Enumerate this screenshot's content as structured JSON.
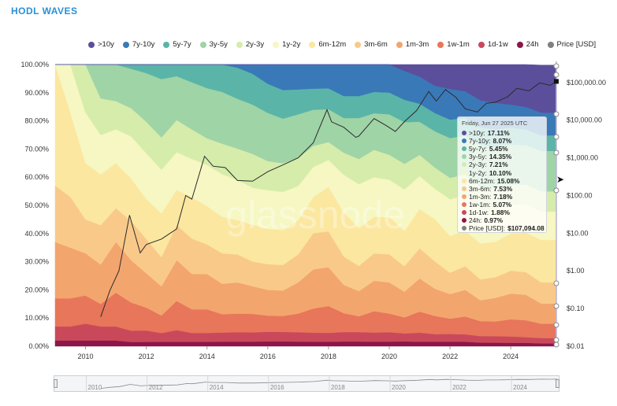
{
  "title": "HODL WAVES",
  "watermark": "glassnode",
  "legend": [
    {
      "label": ">10y",
      "color": "#5b4f9c"
    },
    {
      "label": "7y-10y",
      "color": "#3a79b8"
    },
    {
      "label": "5y-7y",
      "color": "#5ab5a8"
    },
    {
      "label": "3y-5y",
      "color": "#9fd4a6"
    },
    {
      "label": "2y-3y",
      "color": "#d6ecab"
    },
    {
      "label": "1y-2y",
      "color": "#f6f7c2"
    },
    {
      "label": "6m-12m",
      "color": "#fbe79f"
    },
    {
      "label": "3m-6m",
      "color": "#f9c98a"
    },
    {
      "label": "1m-3m",
      "color": "#f3a56e"
    },
    {
      "label": "1w-1m",
      "color": "#e7765a"
    },
    {
      "label": "1d-1w",
      "color": "#c9495b"
    },
    {
      "label": "24h",
      "color": "#8c1648"
    },
    {
      "label": "Price [USD]",
      "color": "#808080"
    }
  ],
  "tooltip": {
    "date": "Friday, Jun 27 2025 UTC",
    "rows": [
      {
        "label": ">10y:",
        "value": "17.11%",
        "color": "#5b4f9c"
      },
      {
        "label": "7y-10y:",
        "value": "8.07%",
        "color": "#3a79b8"
      },
      {
        "label": "5y-7y:",
        "value": "5.45%",
        "color": "#5ab5a8"
      },
      {
        "label": "3y-5y:",
        "value": "14.35%",
        "color": "#9fd4a6"
      },
      {
        "label": "2y-3y:",
        "value": "7.21%",
        "color": "#d6ecab"
      },
      {
        "label": "1y-2y:",
        "value": "10.10%",
        "color": "#f6f7c2"
      },
      {
        "label": "6m-12m:",
        "value": "15.08%",
        "color": "#fbe79f"
      },
      {
        "label": "3m-6m:",
        "value": "7.53%",
        "color": "#f9c98a"
      },
      {
        "label": "1m-3m:",
        "value": "7.18%",
        "color": "#f3a56e"
      },
      {
        "label": "1w-1m:",
        "value": "5.07%",
        "color": "#e7765a"
      },
      {
        "label": "1d-1w:",
        "value": "1.88%",
        "color": "#c9495b"
      },
      {
        "label": "24h:",
        "value": "0.97%",
        "color": "#8c1648"
      },
      {
        "label": "Price [USD]:",
        "value": "$107,094.08",
        "color": "#808080"
      }
    ]
  },
  "navigator": {
    "years": [
      "2010",
      "2012",
      "2014",
      "2016",
      "2018",
      "2020",
      "2022",
      "2024"
    ]
  },
  "chart_data": {
    "type": "area",
    "stacked": true,
    "y_axis_left": {
      "ticks": [
        "0.00%",
        "10.00%",
        "20.00%",
        "30.00%",
        "40.00%",
        "50.00%",
        "60.00%",
        "70.00%",
        "80.00%",
        "90.00%",
        "100.00%"
      ],
      "ylim": [
        0,
        100
      ]
    },
    "y_axis_right": {
      "scale": "log",
      "ticks": [
        "$0.01",
        "$0.10",
        "$1.00",
        "$10.00",
        "$100.00",
        "$1,000.00",
        "$10,000.00",
        "$100,000.00"
      ],
      "ylim": [
        0.01,
        300000
      ]
    },
    "x_axis": {
      "ticks": [
        "2010",
        "2012",
        "2014",
        "2016",
        "2018",
        "2020",
        "2022",
        "2024"
      ],
      "xlim": [
        2009.0,
        2025.5
      ]
    },
    "x": [
      2009.0,
      2009.5,
      2010.0,
      2010.5,
      2011.0,
      2011.5,
      2012.0,
      2012.5,
      2013.0,
      2013.5,
      2014.0,
      2014.5,
      2015.0,
      2015.5,
      2016.0,
      2016.5,
      2017.0,
      2017.5,
      2018.0,
      2018.5,
      2019.0,
      2019.5,
      2020.0,
      2020.5,
      2021.0,
      2021.5,
      2022.0,
      2022.5,
      2023.0,
      2023.5,
      2024.0,
      2024.5,
      2025.0,
      2025.5
    ],
    "series": [
      {
        "name": "24h",
        "values": [
          2,
          2,
          2,
          2,
          2,
          1.5,
          1.5,
          1.5,
          1.5,
          1.5,
          1.5,
          1.5,
          1.5,
          1.5,
          1.5,
          1.5,
          1.5,
          1.5,
          1.5,
          1.5,
          1.5,
          1.5,
          1.5,
          1.5,
          1.5,
          1.5,
          1.5,
          1.5,
          1.2,
          1.2,
          1.2,
          1.2,
          1,
          1
        ]
      },
      {
        "name": "1d-1w",
        "values": [
          5,
          5,
          6,
          5,
          5,
          4,
          4,
          3,
          4,
          3,
          3,
          3,
          3,
          3,
          3,
          3,
          3,
          3,
          3,
          3,
          3,
          3,
          3,
          2.5,
          3,
          2.5,
          2.5,
          2.5,
          2.2,
          2.2,
          2.2,
          2,
          1.9,
          1.9
        ]
      },
      {
        "name": "1w-1m",
        "values": [
          10,
          10,
          10,
          8,
          12,
          10,
          8,
          6,
          10,
          8,
          8,
          6,
          6,
          6,
          5,
          5,
          6,
          8,
          9,
          6,
          5,
          7,
          6,
          5,
          7,
          6,
          5,
          6,
          5,
          5,
          6,
          6,
          5.1,
          5.1
        ]
      },
      {
        "name": "1m-3m",
        "values": [
          20,
          18,
          15,
          14,
          18,
          15,
          12,
          10,
          14,
          12,
          12,
          10,
          10,
          9,
          8,
          8,
          10,
          13,
          13,
          9,
          8,
          10,
          10,
          8,
          11,
          9,
          8,
          9,
          7,
          8,
          9,
          9,
          7.2,
          7.2
        ]
      },
      {
        "name": "3m-6m",
        "values": [
          20,
          18,
          12,
          14,
          12,
          14,
          12,
          10,
          12,
          12,
          10,
          10,
          9,
          8,
          8,
          8,
          9,
          12,
          12,
          9,
          8,
          9,
          9,
          8,
          10,
          9,
          7,
          8,
          7,
          7,
          8,
          8,
          7.5,
          7.5
        ]
      },
      {
        "name": "6m-12m",
        "values": [
          43,
          30,
          20,
          18,
          16,
          15,
          14,
          15,
          12,
          14,
          13,
          12,
          11,
          12,
          11,
          11,
          11,
          12,
          15,
          14,
          12,
          12,
          12,
          11,
          13,
          14,
          12,
          12,
          12,
          12,
          13,
          14,
          15.1,
          15.1
        ]
      },
      {
        "name": "1y-2y",
        "values": [
          0,
          17,
          18,
          14,
          12,
          15,
          16,
          15,
          13,
          13,
          14,
          14,
          13,
          12,
          12,
          12,
          11,
          10,
          9,
          12,
          14,
          13,
          12,
          13,
          11,
          10,
          12,
          12,
          11,
          11,
          10,
          10,
          10.1,
          10.1
        ]
      },
      {
        "name": "2y-3y",
        "values": [
          0,
          0,
          17,
          13,
          10,
          10,
          11,
          11,
          11,
          10,
          9,
          10,
          10,
          11,
          9,
          9,
          9,
          7,
          6,
          7,
          8,
          9,
          8,
          8,
          7,
          7,
          7,
          7,
          8,
          7,
          7,
          7,
          7.2,
          7.2
        ]
      },
      {
        "name": "3y-5y",
        "values": [
          0,
          0,
          0,
          12,
          13,
          14,
          17,
          20,
          15,
          16,
          17,
          17,
          16,
          16,
          15,
          14,
          14,
          12,
          11,
          11,
          13,
          12,
          13,
          13,
          11,
          12,
          13,
          13,
          14,
          14,
          14,
          14,
          14.4,
          14.4
        ]
      },
      {
        "name": "5y-7y",
        "values": [
          0,
          0,
          0,
          0,
          0,
          1.5,
          3,
          5,
          4,
          6,
          8,
          9,
          10,
          10,
          9,
          9,
          8,
          7,
          7,
          7,
          7,
          7,
          7,
          7,
          6,
          6,
          6,
          6,
          6,
          6,
          6,
          5.5,
          5.5,
          5.5
        ]
      },
      {
        "name": "7y-10y",
        "values": [
          0,
          0,
          0,
          0,
          0,
          0,
          0,
          0,
          0,
          0,
          0,
          0,
          1,
          3,
          6,
          8,
          8,
          8,
          8,
          10,
          10,
          9,
          9,
          9,
          9,
          9,
          10,
          9,
          9,
          9,
          8,
          8,
          8.1,
          8.1
        ]
      },
      {
        "name": ">10y",
        "values": [
          0,
          0,
          0,
          0,
          0,
          0,
          0,
          0,
          0,
          0,
          0,
          0,
          0,
          0,
          0,
          0,
          0,
          0,
          0,
          0,
          0,
          0,
          0,
          2,
          4,
          7,
          8,
          9,
          12,
          13,
          14,
          15,
          17.1,
          17.1
        ]
      },
      {
        "name": "Price [USD]",
        "axis": "right",
        "points": [
          [
            2010.5,
            0.06
          ],
          [
            2010.8,
            0.3
          ],
          [
            2011.1,
            1
          ],
          [
            2011.45,
            30
          ],
          [
            2011.8,
            3
          ],
          [
            2012.0,
            5
          ],
          [
            2012.5,
            7
          ],
          [
            2013.0,
            13
          ],
          [
            2013.3,
            100
          ],
          [
            2013.5,
            80
          ],
          [
            2013.92,
            1100
          ],
          [
            2014.2,
            600
          ],
          [
            2014.6,
            550
          ],
          [
            2015.0,
            250
          ],
          [
            2015.5,
            240
          ],
          [
            2016.0,
            430
          ],
          [
            2016.5,
            650
          ],
          [
            2017.0,
            1000
          ],
          [
            2017.5,
            2500
          ],
          [
            2017.95,
            19000
          ],
          [
            2018.1,
            9000
          ],
          [
            2018.5,
            6500
          ],
          [
            2018.9,
            3500
          ],
          [
            2019.0,
            3800
          ],
          [
            2019.5,
            11000
          ],
          [
            2019.9,
            7200
          ],
          [
            2020.2,
            5000
          ],
          [
            2020.5,
            9200
          ],
          [
            2020.9,
            18000
          ],
          [
            2021.3,
            58000
          ],
          [
            2021.55,
            32000
          ],
          [
            2021.85,
            65000
          ],
          [
            2022.2,
            40000
          ],
          [
            2022.5,
            20000
          ],
          [
            2022.9,
            16500
          ],
          [
            2023.2,
            28000
          ],
          [
            2023.5,
            30000
          ],
          [
            2023.9,
            42000
          ],
          [
            2024.2,
            70000
          ],
          [
            2024.6,
            60000
          ],
          [
            2024.95,
            98000
          ],
          [
            2025.3,
            84000
          ],
          [
            2025.5,
            107094.08
          ]
        ]
      }
    ]
  }
}
